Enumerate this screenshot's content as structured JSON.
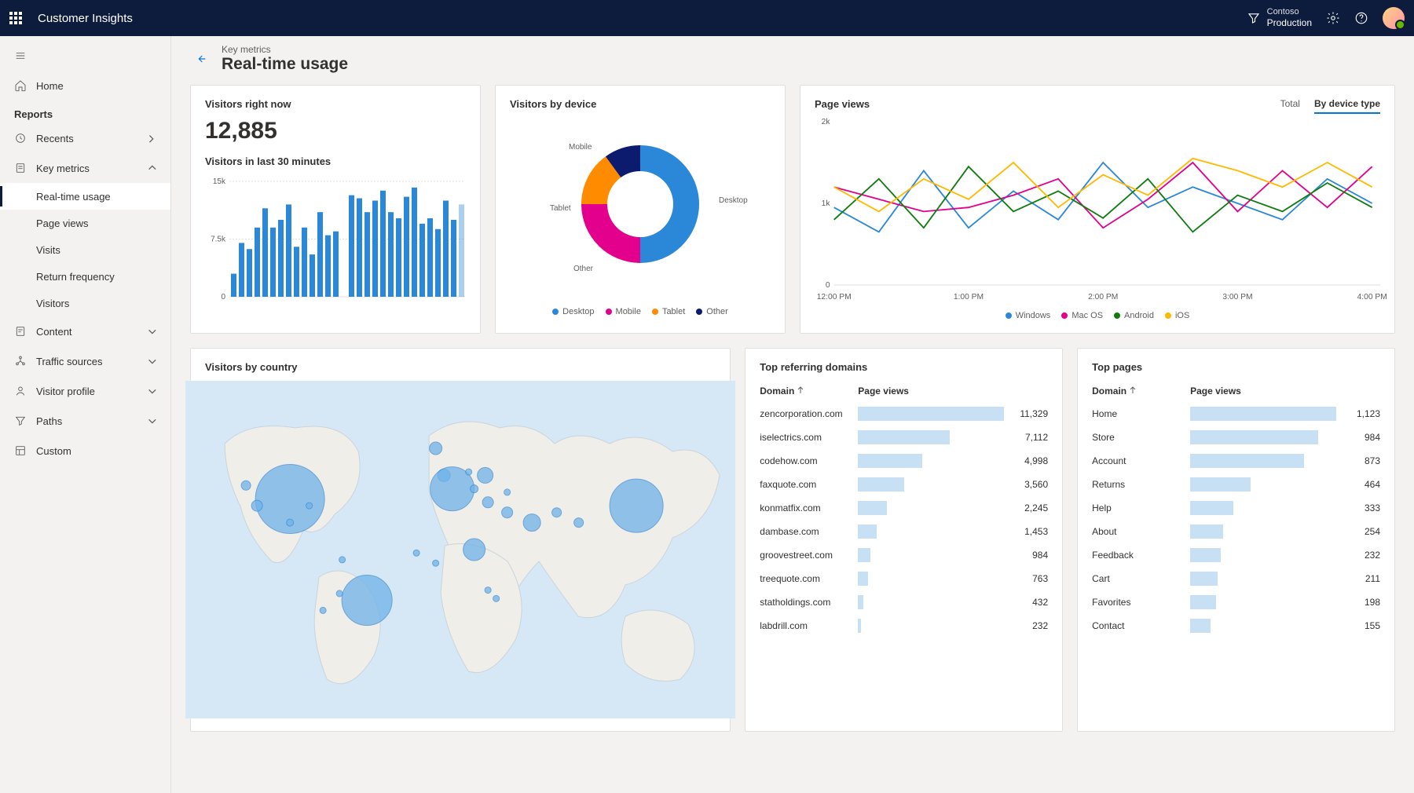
{
  "topnav": {
    "app_title": "Customer Insights",
    "org_label": "Contoso",
    "env_name": "Production"
  },
  "sidebar": {
    "home": "Home",
    "reports_label": "Reports",
    "items": [
      {
        "label": "Recents",
        "icon": "clock",
        "chevron": "right"
      },
      {
        "label": "Key metrics",
        "icon": "doc",
        "chevron": "up",
        "children": [
          {
            "label": "Real-time usage",
            "active": true
          },
          {
            "label": "Page views"
          },
          {
            "label": "Visits"
          },
          {
            "label": "Return frequency"
          },
          {
            "label": "Visitors"
          }
        ]
      },
      {
        "label": "Content",
        "icon": "doc2",
        "chevron": "down"
      },
      {
        "label": "Traffic sources",
        "icon": "network",
        "chevron": "down"
      },
      {
        "label": "Visitor profile",
        "icon": "person",
        "chevron": "down"
      },
      {
        "label": "Paths",
        "icon": "funnel",
        "chevron": "down"
      },
      {
        "label": "Custom",
        "icon": "layout"
      }
    ]
  },
  "page": {
    "crumb": "Key metrics",
    "title": "Real-time usage"
  },
  "visitors_now": {
    "title": "Visitors right now",
    "value": "12,885",
    "sub": "Visitors in last 30 minutes",
    "y_ticks": [
      "15k",
      "7.5k",
      "0"
    ],
    "bars": [
      3000,
      7000,
      6200,
      9000,
      11500,
      9000,
      10000,
      12000,
      6500,
      9000,
      5500,
      11000,
      8000,
      8500,
      0,
      13200,
      12800,
      11000,
      12500,
      13800,
      11000,
      10200,
      13000,
      14200,
      9500,
      10200,
      8800,
      12500,
      10000,
      12000
    ],
    "bar_color": "#2b88d8",
    "background_color": "#ffffff"
  },
  "device_donut": {
    "title": "Visitors by device",
    "slices": [
      {
        "label": "Desktop",
        "value": 50,
        "color": "#2b88d8"
      },
      {
        "label": "Mobile",
        "value": 25,
        "color": "#e3008c"
      },
      {
        "label": "Tablet",
        "value": 15,
        "color": "#ff8c00"
      },
      {
        "label": "Other",
        "value": 10,
        "color": "#0d1b6f"
      }
    ],
    "background_color": "#ffffff"
  },
  "page_views_chart": {
    "title": "Page views",
    "tabs": [
      "Total",
      "By device type"
    ],
    "active_tab": "By device type",
    "y_ticks": [
      "2k",
      "1k",
      "0"
    ],
    "x_ticks": [
      "12:00 PM",
      "1:00 PM",
      "2:00 PM",
      "3:00 PM",
      "4:00 PM"
    ],
    "series": [
      {
        "label": "Windows",
        "color": "#2b88d8",
        "points": [
          950,
          650,
          1400,
          700,
          1150,
          800,
          1500,
          950,
          1200,
          1000,
          800,
          1300,
          1000
        ]
      },
      {
        "label": "Mac OS",
        "color": "#e3008c",
        "points": [
          1200,
          1050,
          900,
          950,
          1100,
          1300,
          700,
          1050,
          1500,
          900,
          1400,
          950,
          1450
        ]
      },
      {
        "label": "Android",
        "color": "#107c10",
        "points": [
          800,
          1300,
          700,
          1450,
          900,
          1150,
          820,
          1300,
          650,
          1100,
          900,
          1250,
          950
        ]
      },
      {
        "label": "iOS",
        "color": "#ffb900",
        "points": [
          1200,
          900,
          1300,
          1050,
          1500,
          950,
          1350,
          1100,
          1550,
          1400,
          1200,
          1500,
          1200
        ]
      }
    ],
    "background_color": "#ffffff"
  },
  "map": {
    "title": "Visitors by country",
    "water_color": "#d6e8f5",
    "land_color": "#f0eee8",
    "border_color": "#c8d4de",
    "bubble_color": "#6fb3e8",
    "bubbles": [
      {
        "x": 11,
        "y": 31,
        "r": 6
      },
      {
        "x": 19,
        "y": 35,
        "r": 44
      },
      {
        "x": 22.5,
        "y": 37,
        "r": 4
      },
      {
        "x": 13,
        "y": 37,
        "r": 7
      },
      {
        "x": 19,
        "y": 42,
        "r": 4.5
      },
      {
        "x": 45.5,
        "y": 20,
        "r": 8
      },
      {
        "x": 47,
        "y": 28,
        "r": 8
      },
      {
        "x": 48.5,
        "y": 32,
        "r": 28
      },
      {
        "x": 51.5,
        "y": 27,
        "r": 4
      },
      {
        "x": 52.5,
        "y": 32,
        "r": 5
      },
      {
        "x": 54.5,
        "y": 28,
        "r": 10
      },
      {
        "x": 55,
        "y": 36,
        "r": 7
      },
      {
        "x": 58.5,
        "y": 33,
        "r": 4
      },
      {
        "x": 58.5,
        "y": 39,
        "r": 7
      },
      {
        "x": 42,
        "y": 51,
        "r": 4
      },
      {
        "x": 45.5,
        "y": 54,
        "r": 4
      },
      {
        "x": 52.5,
        "y": 50,
        "r": 14
      },
      {
        "x": 55,
        "y": 62,
        "r": 4
      },
      {
        "x": 56.5,
        "y": 64.5,
        "r": 4
      },
      {
        "x": 63,
        "y": 42,
        "r": 11
      },
      {
        "x": 67.5,
        "y": 39,
        "r": 6
      },
      {
        "x": 71.5,
        "y": 42,
        "r": 6
      },
      {
        "x": 82,
        "y": 37,
        "r": 34
      },
      {
        "x": 28.5,
        "y": 53,
        "r": 4
      },
      {
        "x": 25,
        "y": 68,
        "r": 4
      },
      {
        "x": 28,
        "y": 63,
        "r": 4
      },
      {
        "x": 33,
        "y": 65,
        "r": 32
      }
    ]
  },
  "ref_domains": {
    "title": "Top referring domains",
    "col_domain": "Domain",
    "col_views": "Page views",
    "max": 11329,
    "bar_color": "#c7e0f4",
    "rows": [
      {
        "d": "zencorporation.com",
        "v": 11329,
        "t": "11,329"
      },
      {
        "d": "iselectrics.com",
        "v": 7112,
        "t": "7,112"
      },
      {
        "d": "codehow.com",
        "v": 4998,
        "t": "4,998"
      },
      {
        "d": "faxquote.com",
        "v": 3560,
        "t": "3,560"
      },
      {
        "d": "konmatfix.com",
        "v": 2245,
        "t": "2,245"
      },
      {
        "d": "dambase.com",
        "v": 1453,
        "t": "1,453"
      },
      {
        "d": "groovestreet.com",
        "v": 984,
        "t": "984"
      },
      {
        "d": "treequote.com",
        "v": 763,
        "t": "763"
      },
      {
        "d": "statholdings.com",
        "v": 432,
        "t": "432"
      },
      {
        "d": "labdrill.com",
        "v": 232,
        "t": "232"
      }
    ]
  },
  "top_pages": {
    "title": "Top pages",
    "col_domain": "Domain",
    "col_views": "Page views",
    "max": 1123,
    "bar_color": "#c7e0f4",
    "rows": [
      {
        "d": "Home",
        "v": 1123,
        "t": "1,123"
      },
      {
        "d": "Store",
        "v": 984,
        "t": "984"
      },
      {
        "d": "Account",
        "v": 873,
        "t": "873"
      },
      {
        "d": "Returns",
        "v": 464,
        "t": "464"
      },
      {
        "d": "Help",
        "v": 333,
        "t": "333"
      },
      {
        "d": "About",
        "v": 254,
        "t": "254"
      },
      {
        "d": "Feedback",
        "v": 232,
        "t": "232"
      },
      {
        "d": "Cart",
        "v": 211,
        "t": "211"
      },
      {
        "d": "Favorites",
        "v": 198,
        "t": "198"
      },
      {
        "d": "Contact",
        "v": 155,
        "t": "155"
      }
    ]
  }
}
